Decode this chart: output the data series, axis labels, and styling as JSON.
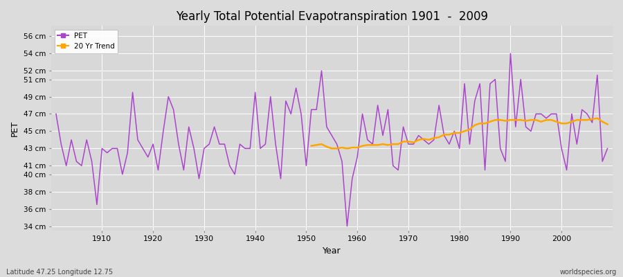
{
  "title": "Yearly Total Potential Evapotranspiration 1901  -  2009",
  "xlabel": "Year",
  "ylabel": "PET",
  "subtitle_left": "Latitude 47.25 Longitude 12.75",
  "subtitle_right": "worldspecies.org",
  "pet_color": "#AA44CC",
  "trend_color": "#FFA500",
  "background_color": "#DCDCDC",
  "plot_bg_color": "#D8D8D8",
  "ylim": [
    33.5,
    57.0
  ],
  "years": [
    1901,
    1902,
    1903,
    1904,
    1905,
    1906,
    1907,
    1908,
    1909,
    1910,
    1911,
    1912,
    1913,
    1914,
    1915,
    1916,
    1917,
    1918,
    1919,
    1920,
    1921,
    1922,
    1923,
    1924,
    1925,
    1926,
    1927,
    1928,
    1929,
    1930,
    1931,
    1932,
    1933,
    1934,
    1935,
    1936,
    1937,
    1938,
    1939,
    1940,
    1941,
    1942,
    1943,
    1944,
    1945,
    1946,
    1947,
    1948,
    1949,
    1950,
    1951,
    1952,
    1953,
    1954,
    1955,
    1956,
    1957,
    1958,
    1959,
    1960,
    1961,
    1962,
    1963,
    1964,
    1965,
    1966,
    1967,
    1968,
    1969,
    1970,
    1971,
    1972,
    1973,
    1974,
    1975,
    1976,
    1977,
    1978,
    1979,
    1980,
    1981,
    1982,
    1983,
    1984,
    1985,
    1986,
    1987,
    1988,
    1989,
    1990,
    1991,
    1992,
    1993,
    1994,
    1995,
    1996,
    1997,
    1998,
    1999,
    2000,
    2001,
    2002,
    2003,
    2004,
    2005,
    2006,
    2007,
    2008,
    2009
  ],
  "pet_values": [
    47.0,
    43.5,
    41.0,
    44.0,
    41.5,
    41.0,
    44.0,
    41.5,
    36.5,
    43.0,
    42.5,
    43.0,
    43.0,
    40.0,
    42.5,
    49.5,
    44.0,
    43.0,
    42.0,
    43.5,
    40.5,
    45.0,
    49.0,
    47.5,
    43.5,
    40.5,
    45.5,
    43.0,
    39.5,
    43.0,
    43.5,
    45.5,
    43.5,
    43.5,
    41.0,
    40.0,
    43.5,
    43.0,
    43.0,
    49.5,
    43.0,
    43.5,
    49.0,
    43.5,
    39.5,
    48.5,
    47.0,
    50.0,
    47.0,
    41.0,
    47.5,
    47.5,
    52.0,
    45.5,
    44.5,
    43.5,
    41.5,
    34.0,
    39.5,
    42.0,
    47.0,
    44.0,
    43.5,
    48.0,
    44.5,
    47.5,
    41.0,
    40.5,
    45.5,
    43.5,
    43.5,
    44.5,
    44.0,
    43.5,
    44.0,
    48.0,
    44.5,
    43.5,
    45.0,
    43.0,
    50.5,
    43.5,
    48.5,
    50.5,
    40.5,
    50.5,
    51.0,
    43.0,
    41.5,
    54.0,
    45.5,
    51.0,
    45.5,
    45.0,
    47.0,
    47.0,
    46.5,
    47.0,
    47.0,
    43.0,
    40.5,
    47.0,
    43.5,
    47.5,
    47.0,
    46.0,
    51.5,
    41.5,
    43.0
  ],
  "trend_values_years": [
    1951,
    1952,
    1953,
    1954,
    1955,
    1956,
    1957,
    1958,
    1959,
    1960,
    1961,
    1962,
    1963,
    1964,
    1965,
    1966,
    1967,
    1968,
    1969,
    1970,
    1971,
    1972,
    1973,
    1974,
    1975,
    1976,
    1977,
    1978,
    1979,
    1980,
    1981,
    1982,
    1983,
    1984,
    1985,
    1986,
    1987,
    1988,
    1989,
    1990,
    1991,
    1992,
    1993,
    1994,
    1995,
    1996,
    1997,
    1998,
    1999,
    2000,
    2001,
    2002,
    2003,
    2004,
    2005,
    2006,
    2007,
    2008,
    2009
  ],
  "trend_values": [
    43.3,
    43.4,
    43.5,
    43.2,
    43.0,
    43.0,
    43.1,
    43.0,
    43.1,
    43.1,
    43.3,
    43.4,
    43.4,
    43.4,
    43.5,
    43.4,
    43.5,
    43.5,
    43.8,
    43.8,
    43.7,
    44.0,
    44.1,
    44.0,
    44.2,
    44.3,
    44.6,
    44.6,
    44.8,
    44.8,
    45.0,
    45.2,
    45.7,
    45.9,
    45.9,
    46.1,
    46.3,
    46.3,
    46.2,
    46.3,
    46.3,
    46.3,
    46.2,
    46.3,
    46.3,
    46.1,
    46.3,
    46.3,
    46.1,
    45.9,
    45.9,
    46.1,
    46.3,
    46.3,
    46.3,
    46.4,
    46.5,
    46.1,
    45.8
  ]
}
